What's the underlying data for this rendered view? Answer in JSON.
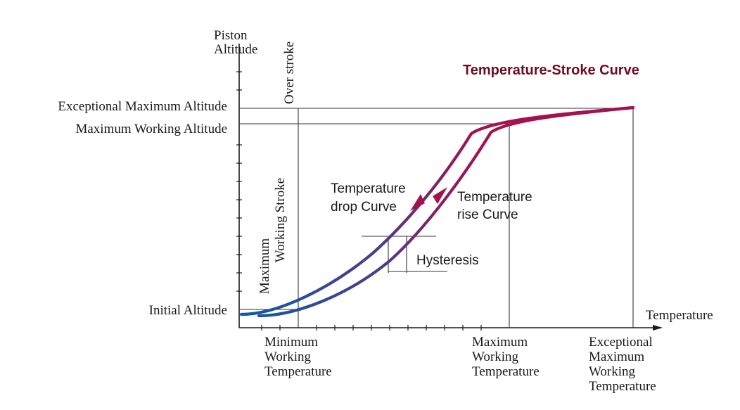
{
  "title": "Temperature-Stroke Curve",
  "y_axis_label": [
    "Piston",
    "Altitude"
  ],
  "x_axis_label": "Temperature",
  "altitude_levels": {
    "exceptional_max": "Exceptional Maximum Altitude",
    "max_working": "Maximum Working Altitude",
    "initial": "Initial Altitude"
  },
  "stroke_labels": {
    "over_stroke": "Over stroke",
    "max_working_stroke": [
      "Maximum",
      "Working Stroke"
    ]
  },
  "temperature_levels": {
    "min_working": [
      "Minimum",
      "Working",
      "Temperature"
    ],
    "max_working": [
      "Maximum",
      "Working",
      "Temperature"
    ],
    "exceptional_max_working": [
      "Exceptional",
      "Maximum",
      "Working",
      "Temperature"
    ]
  },
  "curves": {
    "drop": [
      "Temperature",
      "drop Curve"
    ],
    "rise": [
      "Temperature",
      "rise Curve"
    ],
    "hysteresis": "Hysteresis"
  },
  "colors": {
    "title": "#6b0f1f",
    "curve_start": "#0a5ea8",
    "curve_end": "#a3124f",
    "axis": "#1a1a1a",
    "guide": "#333333"
  }
}
